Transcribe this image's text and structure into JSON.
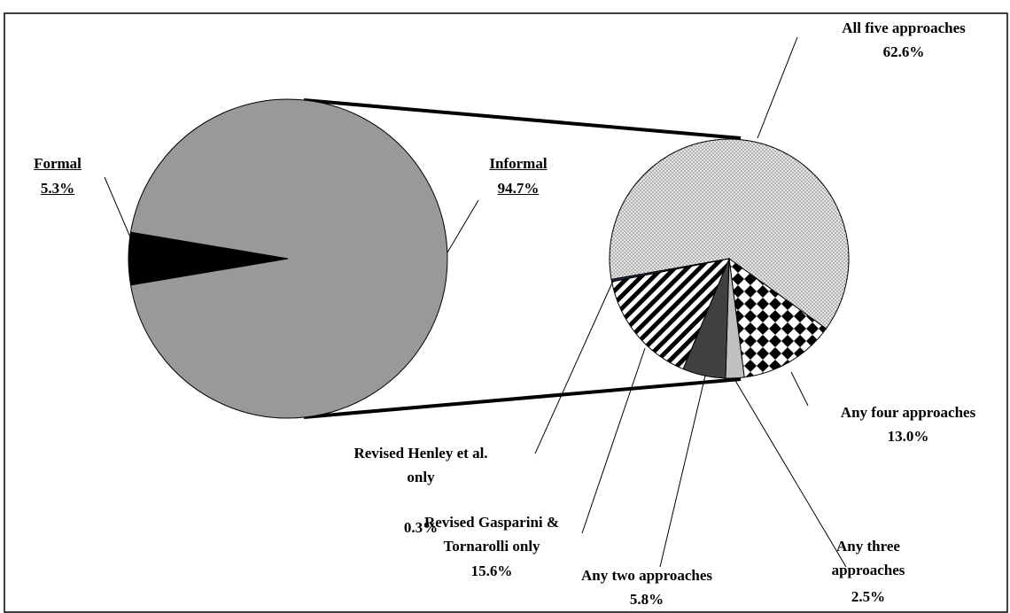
{
  "chart_data": [
    {
      "type": "pie",
      "categories": [
        "Formal",
        "Informal"
      ],
      "values": [
        5.3,
        94.7
      ],
      "value_labels": [
        "5.3%",
        "94.7%"
      ],
      "colors": [
        "#000000",
        "#999999"
      ]
    },
    {
      "type": "pie",
      "categories": [
        "All five approaches",
        "Any four approaches",
        "Any three approaches",
        "Any two approaches",
        "Revised Gasparini & Tornarolli only",
        "Revised Henley et al. only"
      ],
      "values": [
        62.6,
        13.0,
        2.5,
        5.8,
        15.6,
        0.3
      ],
      "value_labels": [
        "62.6%",
        "13.0%",
        "2.5%",
        "5.8%",
        "15.6%",
        "0.3%"
      ],
      "colors": [
        "#d9d9d9",
        "#ffffff",
        "#c0c0c0",
        "#404040",
        "#ffffff",
        "#1f2a44"
      ],
      "hatch": [
        "dots",
        "checker",
        null,
        null,
        "stripes",
        null
      ]
    }
  ]
}
